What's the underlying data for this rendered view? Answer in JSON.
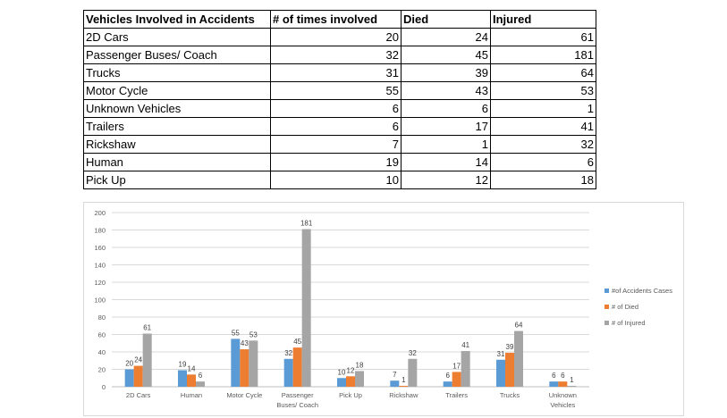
{
  "table": {
    "headers": [
      "Vehicles Involved in Accidents",
      "# of times involved",
      "Died",
      "Injured"
    ],
    "rows": [
      [
        "2D Cars",
        "20",
        "24",
        "61"
      ],
      [
        "Passenger Buses/ Coach",
        "32",
        "45",
        "181"
      ],
      [
        "Trucks",
        "31",
        "39",
        "64"
      ],
      [
        "Motor Cycle",
        "55",
        "43",
        "53"
      ],
      [
        "Unknown Vehicles",
        "6",
        "6",
        "1"
      ],
      [
        "Trailers",
        "6",
        "17",
        "41"
      ],
      [
        "Rickshaw",
        "7",
        "1",
        "32"
      ],
      [
        "Human",
        "19",
        "14",
        "6"
      ],
      [
        "Pick Up",
        "10",
        "12",
        "18"
      ]
    ]
  },
  "chart_data": {
    "type": "bar",
    "categories": [
      "2D Cars",
      "Human",
      "Motor Cycle",
      "Passenger Buses/ Coach",
      "Pick Up",
      "Rickshaw",
      "Trailers",
      "Trucks",
      "Unknown Vehicles"
    ],
    "category_lines": [
      [
        "2D Cars"
      ],
      [
        "Human"
      ],
      [
        "Motor Cycle"
      ],
      [
        "Passenger",
        "Buses/ Coach"
      ],
      [
        "Pick Up"
      ],
      [
        "Rickshaw"
      ],
      [
        "Trailers"
      ],
      [
        "Trucks"
      ],
      [
        "Unknown",
        "Vehicles"
      ]
    ],
    "series": [
      {
        "name": "#of Accidents Cases",
        "values": [
          20,
          19,
          55,
          32,
          10,
          7,
          6,
          31,
          6
        ],
        "color": "#5b9bd5"
      },
      {
        "name": "# of Died",
        "values": [
          24,
          14,
          43,
          45,
          12,
          1,
          17,
          39,
          6
        ],
        "color": "#ed7d31"
      },
      {
        "name": "# of Injured",
        "values": [
          61,
          6,
          53,
          181,
          18,
          32,
          41,
          64,
          1
        ],
        "color": "#a5a5a5"
      }
    ],
    "ylim": [
      0,
      200
    ],
    "yticks": [
      0,
      20,
      40,
      60,
      80,
      100,
      120,
      140,
      160,
      180,
      200
    ],
    "grid": true,
    "legend": "right",
    "title": "",
    "xlabel": "",
    "ylabel": ""
  }
}
